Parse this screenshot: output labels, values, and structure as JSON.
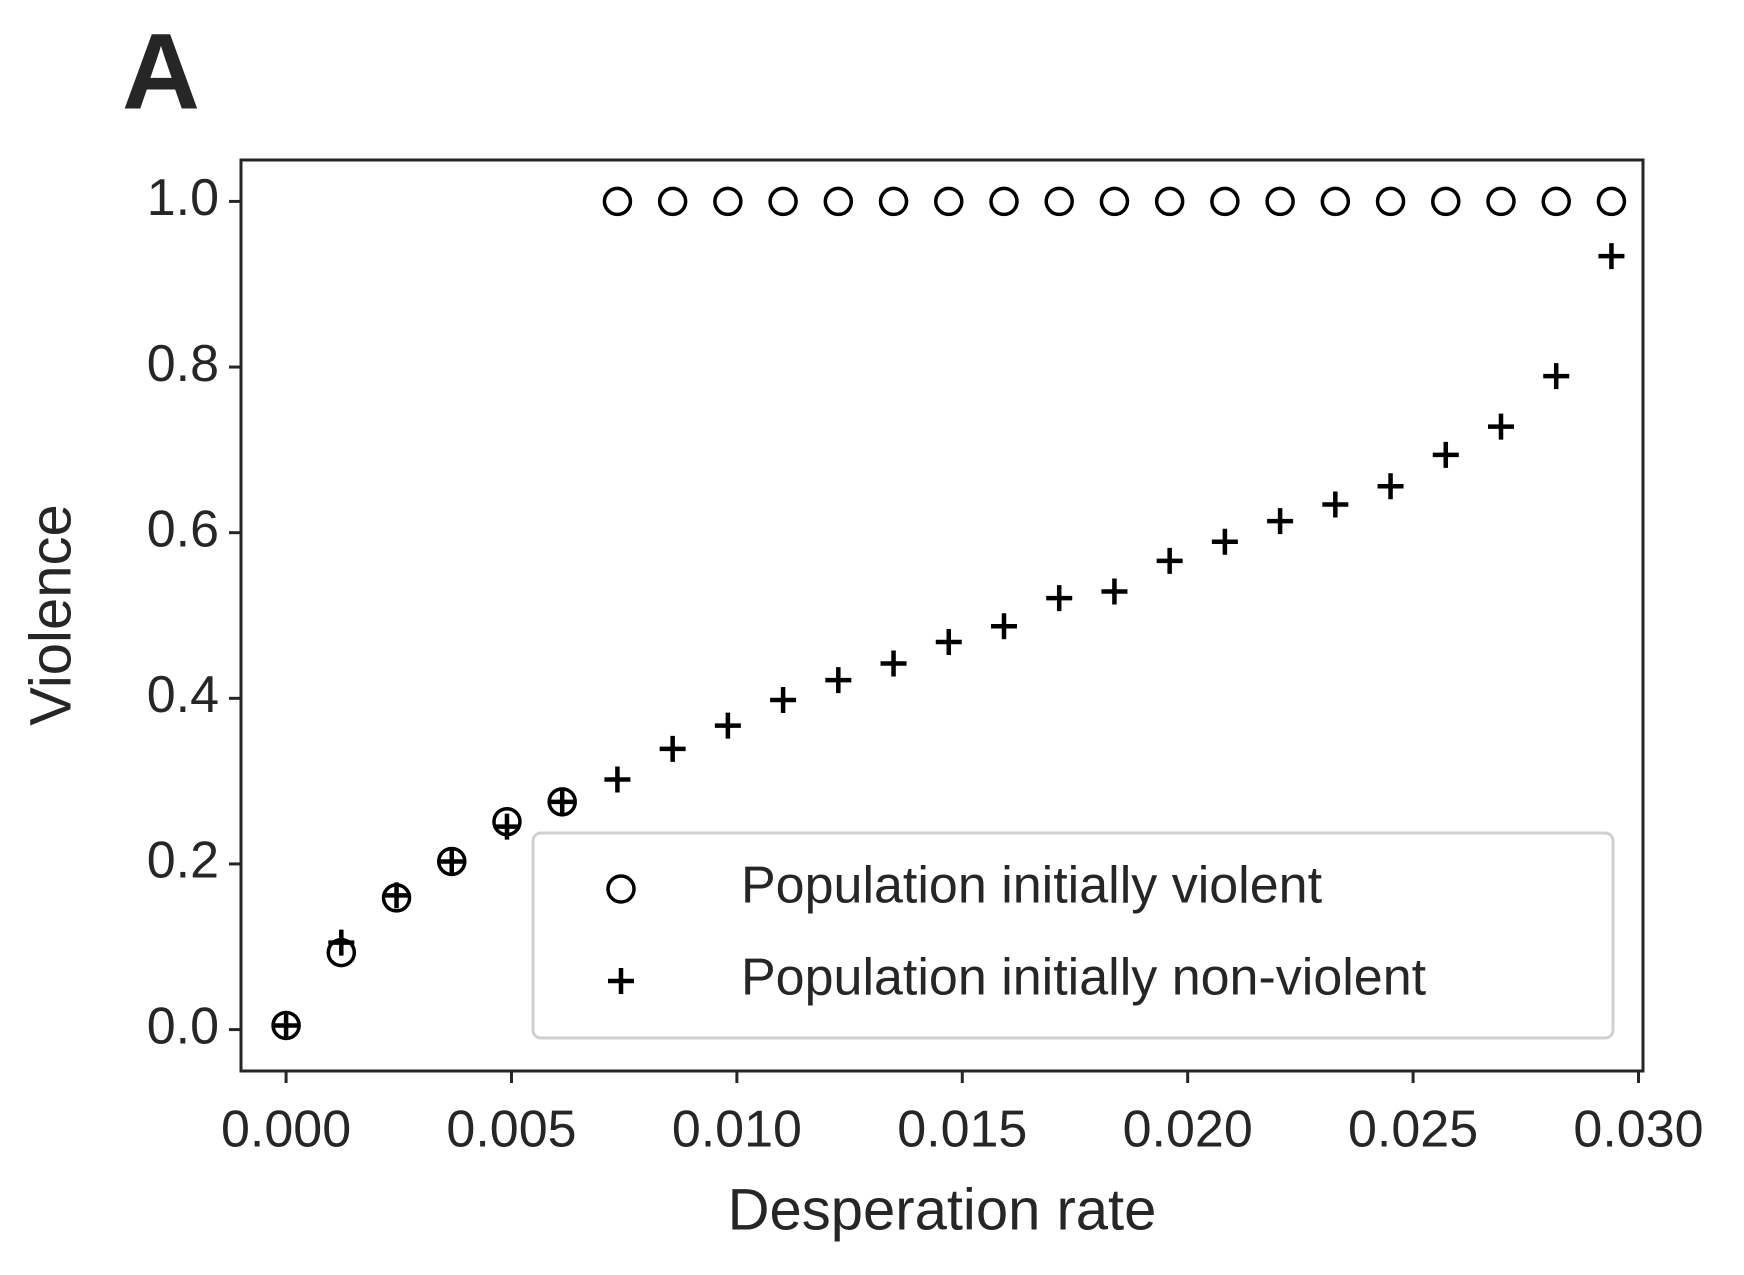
{
  "chart_data": {
    "type": "scatter",
    "panel_label": "A",
    "xlabel": "Desperation rate",
    "ylabel": "Violence",
    "x": [
      0,
      0.001225,
      0.00245,
      0.003675,
      0.0049,
      0.006125,
      0.00735,
      0.008575,
      0.0098,
      0.011025,
      0.01225,
      0.013475,
      0.0147,
      0.015925,
      0.01715,
      0.018375,
      0.0196,
      0.020825,
      0.02205,
      0.023275,
      0.0245,
      0.025725,
      0.02695,
      0.028175,
      0.0294
    ],
    "series": [
      {
        "name": "Population initially violent",
        "marker": "circle",
        "color": "#000000",
        "values": [
          0.005,
          0.093,
          0.159,
          0.203,
          0.251,
          0.275,
          1.0,
          1.0,
          1.0,
          1.0,
          1.0,
          1.0,
          1.0,
          1.0,
          1.0,
          1.0,
          1.0,
          1.0,
          1.0,
          1.0,
          1.0,
          1.0,
          1.0,
          1.0,
          1.0
        ]
      },
      {
        "name": "Population initially non-violent",
        "marker": "plus",
        "color": "#000000",
        "values": [
          0.005,
          0.105,
          0.162,
          0.203,
          0.245,
          0.275,
          0.302,
          0.339,
          0.367,
          0.398,
          0.422,
          0.442,
          0.468,
          0.487,
          0.521,
          0.529,
          0.566,
          0.589,
          0.614,
          0.634,
          0.656,
          0.694,
          0.728,
          0.789,
          0.934
        ]
      }
    ],
    "xlim": [
      -0.001,
      0.0301
    ],
    "ylim": [
      -0.05,
      1.05
    ],
    "xticks": [
      {
        "value": 0,
        "label": "0.000"
      },
      {
        "value": 0.005,
        "label": "0.005"
      },
      {
        "value": 0.01,
        "label": "0.010"
      },
      {
        "value": 0.015,
        "label": "0.015"
      },
      {
        "value": 0.02,
        "label": "0.020"
      },
      {
        "value": 0.025,
        "label": "0.025"
      },
      {
        "value": 0.03,
        "label": "0.030"
      }
    ],
    "yticks": [
      {
        "value": 0,
        "label": "0.0"
      },
      {
        "value": 0.2,
        "label": "0.2"
      },
      {
        "value": 0.4,
        "label": "0.4"
      },
      {
        "value": 0.6,
        "label": "0.6"
      },
      {
        "value": 0.8,
        "label": "0.8"
      },
      {
        "value": 1.0,
        "label": "1.0"
      }
    ],
    "legend_loc": "lower right",
    "grid": false
  }
}
